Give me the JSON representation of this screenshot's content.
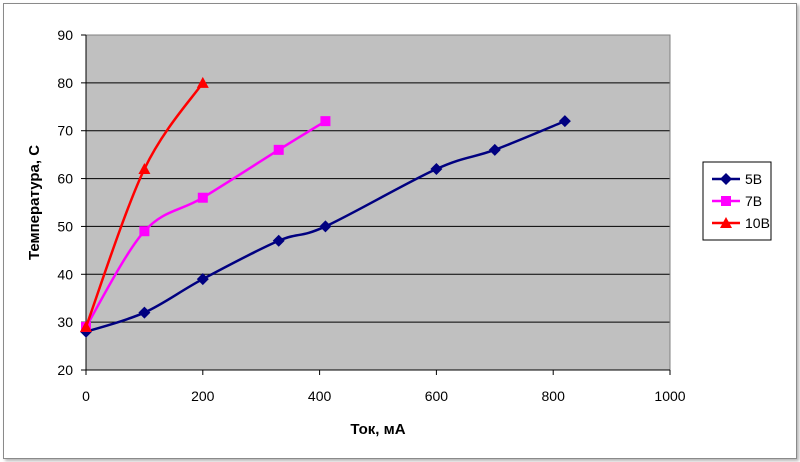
{
  "chart_data": {
    "type": "line",
    "title": "",
    "xlabel": "Ток, мА",
    "ylabel": "Температура, С",
    "xlim": [
      0,
      1000
    ],
    "ylim": [
      20,
      90
    ],
    "xticks": [
      0,
      200,
      400,
      600,
      800,
      1000
    ],
    "yticks": [
      20,
      30,
      40,
      50,
      60,
      70,
      80,
      90
    ],
    "grid": "horizontal",
    "legend_position": "right",
    "plot_background": "#c0c0c0",
    "series": [
      {
        "name": "5В",
        "color": "#000080",
        "marker": "diamond",
        "x": [
          0,
          100,
          200,
          330,
          410,
          600,
          700,
          820
        ],
        "y": [
          28,
          32,
          39,
          47,
          50,
          62,
          66,
          72
        ]
      },
      {
        "name": "7В",
        "color": "#ff00ff",
        "marker": "square",
        "x": [
          0,
          100,
          200,
          330,
          410
        ],
        "y": [
          29,
          49,
          56,
          66,
          72
        ]
      },
      {
        "name": "10В",
        "color": "#ff0000",
        "marker": "triangle",
        "x": [
          0,
          100,
          200
        ],
        "y": [
          29,
          62,
          80
        ]
      }
    ]
  }
}
